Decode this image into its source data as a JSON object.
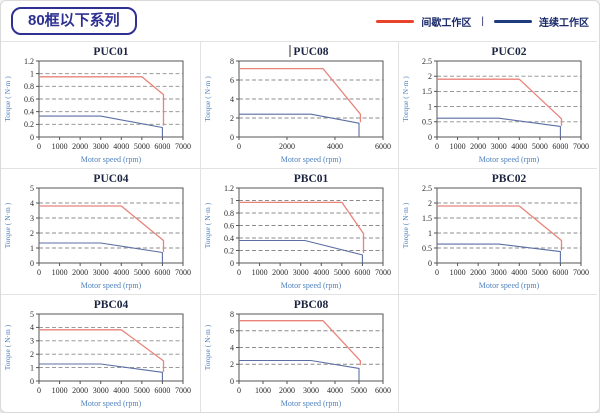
{
  "header": {
    "series_tag": "80框以下系列",
    "legend": [
      {
        "label": "间歇工作区",
        "color": "#e8432c"
      },
      {
        "label": "连续工作区",
        "color": "#1f3a7d"
      }
    ],
    "legend_separator": "|"
  },
  "colors": {
    "intermittent_line": "#e8837a",
    "continuous_line": "#5c6fa3",
    "grid_line": "#8c8c8c",
    "plot_border": "#555555",
    "tick_text": "#2b2b2b",
    "axis_label": "#4f81bd",
    "chart_title": "#1b2440",
    "tag_accent": "#2e3192"
  },
  "chart_data": [
    {
      "type": "line",
      "title": "PUC01",
      "cursor": false,
      "xlabel": "Motor speed (rpm)",
      "ylabel": "Torque ( N·m )",
      "xlim": [
        0,
        7000
      ],
      "ylim": [
        0,
        1.2
      ],
      "xticks": [
        0,
        1000,
        2000,
        3000,
        4000,
        5000,
        6000,
        7000
      ],
      "xtick_labels": [
        "0",
        "1000",
        "2000",
        "3000",
        "4000",
        "5000",
        "6000",
        "7000"
      ],
      "yticks": [
        0,
        0.2,
        0.4,
        0.6,
        0.8,
        1,
        1.2
      ],
      "ytick_labels": [
        "0",
        "0.2",
        "0.4",
        "0.6",
        "0.8",
        "1",
        "1.2"
      ],
      "grid": "dashed-horizontal",
      "legend_position": "none",
      "series": [
        {
          "name": "间歇工作区",
          "role": "intermittent",
          "points": [
            [
              0,
              0.95
            ],
            [
              5000,
              0.95
            ],
            [
              6050,
              0.67
            ],
            [
              6050,
              0.18
            ]
          ]
        },
        {
          "name": "连续工作区",
          "role": "continuous",
          "points": [
            [
              0,
              0.33
            ],
            [
              3000,
              0.33
            ],
            [
              6000,
              0.15
            ],
            [
              6000,
              0
            ]
          ]
        }
      ]
    },
    {
      "type": "line",
      "title": "PUC08",
      "cursor": true,
      "xlabel": "Motor speed (rpm)",
      "ylabel": "Torque ( N·m )",
      "xlim": [
        0,
        6000
      ],
      "ylim": [
        0,
        8
      ],
      "xticks": [
        0,
        2000,
        4000,
        6000
      ],
      "xtick_labels": [
        "0",
        "2000",
        "4000",
        "6000"
      ],
      "yticks": [
        0,
        2,
        4,
        6,
        8
      ],
      "ytick_labels": [
        "0",
        "2",
        "4",
        "6",
        "8"
      ],
      "grid": "dashed-horizontal",
      "legend_position": "none",
      "series": [
        {
          "name": "间歇工作区",
          "role": "intermittent",
          "points": [
            [
              0,
              7.2
            ],
            [
              3500,
              7.2
            ],
            [
              5060,
              2.4
            ],
            [
              5060,
              1.55
            ]
          ]
        },
        {
          "name": "连续工作区",
          "role": "continuous",
          "points": [
            [
              0,
              2.4
            ],
            [
              3000,
              2.4
            ],
            [
              5000,
              1.45
            ],
            [
              5000,
              0
            ]
          ]
        }
      ]
    },
    {
      "type": "line",
      "title": "PUC02",
      "cursor": false,
      "xlabel": "Motor speed (rpm)",
      "ylabel": "Torque ( N·m )",
      "xlim": [
        0,
        7000
      ],
      "ylim": [
        0,
        2.5
      ],
      "xticks": [
        0,
        1000,
        2000,
        3000,
        4000,
        5000,
        6000,
        7000
      ],
      "xtick_labels": [
        "0",
        "1000",
        "2000",
        "3000",
        "4000",
        "5000",
        "6000",
        "7000"
      ],
      "yticks": [
        0,
        0.5,
        1,
        1.5,
        2,
        2.5
      ],
      "ytick_labels": [
        "0",
        "0.5",
        "1",
        "1.5",
        "2",
        "2.5"
      ],
      "grid": "dashed-horizontal",
      "legend_position": "none",
      "series": [
        {
          "name": "间歇工作区",
          "role": "intermittent",
          "points": [
            [
              0,
              1.9
            ],
            [
              4000,
              1.9
            ],
            [
              6050,
              0.6
            ],
            [
              6050,
              0.37
            ]
          ]
        },
        {
          "name": "连续工作区",
          "role": "continuous",
          "points": [
            [
              0,
              0.62
            ],
            [
              3000,
              0.62
            ],
            [
              6000,
              0.35
            ],
            [
              6000,
              0
            ]
          ]
        }
      ]
    },
    {
      "type": "line",
      "title": "PUC04",
      "cursor": false,
      "xlabel": "Motor speed (rpm)",
      "ylabel": "Torque ( N·m )",
      "xlim": [
        0,
        7000
      ],
      "ylim": [
        0,
        5
      ],
      "xticks": [
        0,
        1000,
        2000,
        3000,
        4000,
        5000,
        6000,
        7000
      ],
      "xtick_labels": [
        "0",
        "1000",
        "2000",
        "3000",
        "4000",
        "5000",
        "6000",
        "7000"
      ],
      "yticks": [
        0,
        1,
        2,
        3,
        4,
        5
      ],
      "ytick_labels": [
        "0",
        "1",
        "2",
        "3",
        "4",
        "5"
      ],
      "grid": "dashed-horizontal",
      "legend_position": "none",
      "series": [
        {
          "name": "间歇工作区",
          "role": "intermittent",
          "points": [
            [
              0,
              3.8
            ],
            [
              4000,
              3.8
            ],
            [
              6050,
              1.5
            ],
            [
              6050,
              0.75
            ]
          ]
        },
        {
          "name": "连续工作区",
          "role": "continuous",
          "points": [
            [
              0,
              1.33
            ],
            [
              3000,
              1.33
            ],
            [
              6000,
              0.7
            ],
            [
              6000,
              0
            ]
          ]
        }
      ]
    },
    {
      "type": "line",
      "title": "PBC01",
      "cursor": false,
      "xlabel": "Motor speed (rpm)",
      "ylabel": "Torque ( N·m )",
      "xlim": [
        0,
        7000
      ],
      "ylim": [
        0,
        1.2
      ],
      "xticks": [
        0,
        1000,
        2000,
        3000,
        4000,
        5000,
        6000,
        7000
      ],
      "xtick_labels": [
        "0",
        "1000",
        "2000",
        "3000",
        "4000",
        "5000",
        "6000",
        "7000"
      ],
      "yticks": [
        0,
        0.2,
        0.4,
        0.6,
        0.8,
        1,
        1.2
      ],
      "ytick_labels": [
        "0",
        "0.2",
        "0.4",
        "0.6",
        "0.8",
        "1",
        "1.2"
      ],
      "grid": "dashed-horizontal",
      "legend_position": "none",
      "series": [
        {
          "name": "间歇工作区",
          "role": "intermittent",
          "points": [
            [
              0,
              0.97
            ],
            [
              5000,
              0.97
            ],
            [
              6050,
              0.47
            ],
            [
              6050,
              0.16
            ]
          ]
        },
        {
          "name": "连续工作区",
          "role": "continuous",
          "points": [
            [
              0,
              0.36
            ],
            [
              3200,
              0.36
            ],
            [
              6000,
              0.13
            ],
            [
              6000,
              0
            ]
          ]
        }
      ]
    },
    {
      "type": "line",
      "title": "PBC02",
      "cursor": false,
      "xlabel": "Motor speed (rpm)",
      "ylabel": "Torque ( N·m )",
      "xlim": [
        0,
        7000
      ],
      "ylim": [
        0,
        2.5
      ],
      "xticks": [
        0,
        1000,
        2000,
        3000,
        4000,
        5000,
        6000,
        7000
      ],
      "xtick_labels": [
        "0",
        "1000",
        "2000",
        "3000",
        "4000",
        "5000",
        "6000",
        "7000"
      ],
      "yticks": [
        0,
        0.5,
        1,
        1.5,
        2,
        2.5
      ],
      "ytick_labels": [
        "0",
        "0.5",
        "1",
        "1.5",
        "2",
        "2.5"
      ],
      "grid": "dashed-horizontal",
      "legend_position": "none",
      "series": [
        {
          "name": "间歇工作区",
          "role": "intermittent",
          "points": [
            [
              0,
              1.9
            ],
            [
              4000,
              1.9
            ],
            [
              6050,
              0.75
            ],
            [
              6050,
              0.42
            ]
          ]
        },
        {
          "name": "连续工作区",
          "role": "continuous",
          "points": [
            [
              0,
              0.63
            ],
            [
              3000,
              0.63
            ],
            [
              6000,
              0.38
            ],
            [
              6000,
              0
            ]
          ]
        }
      ]
    },
    {
      "type": "line",
      "title": "PBC04",
      "cursor": false,
      "xlabel": "Motor speed (rpm)",
      "ylabel": "Torque ( N·m )",
      "xlim": [
        0,
        7000
      ],
      "ylim": [
        0,
        5
      ],
      "xticks": [
        0,
        1000,
        2000,
        3000,
        4000,
        5000,
        6000,
        7000
      ],
      "xtick_labels": [
        "0",
        "1000",
        "2000",
        "3000",
        "4000",
        "5000",
        "6000",
        "7000"
      ],
      "yticks": [
        0,
        1,
        2,
        3,
        4,
        5
      ],
      "ytick_labels": [
        "0",
        "1",
        "2",
        "3",
        "4",
        "5"
      ],
      "grid": "dashed-horizontal",
      "legend_position": "none",
      "series": [
        {
          "name": "间歇工作区",
          "role": "intermittent",
          "points": [
            [
              0,
              3.82
            ],
            [
              4000,
              3.82
            ],
            [
              6050,
              1.5
            ],
            [
              6050,
              0.68
            ]
          ]
        },
        {
          "name": "连续工作区",
          "role": "continuous",
          "points": [
            [
              0,
              1.27
            ],
            [
              3000,
              1.27
            ],
            [
              6000,
              0.65
            ],
            [
              6000,
              0
            ]
          ]
        }
      ]
    },
    {
      "type": "line",
      "title": "PBC08",
      "cursor": false,
      "xlabel": "Motor speed (rpm)",
      "ylabel": "Torque ( N·m )",
      "xlim": [
        0,
        6000
      ],
      "ylim": [
        0,
        8
      ],
      "xticks": [
        0,
        1000,
        2000,
        3000,
        4000,
        5000,
        6000
      ],
      "xtick_labels": [
        "0",
        "1000",
        "2000",
        "3000",
        "4000",
        "5000",
        "6000"
      ],
      "yticks": [
        0,
        2,
        4,
        6,
        8
      ],
      "ytick_labels": [
        "0",
        "2",
        "4",
        "6",
        "8"
      ],
      "grid": "dashed-horizontal",
      "legend_position": "none",
      "series": [
        {
          "name": "间歇工作区",
          "role": "intermittent",
          "points": [
            [
              0,
              7.2
            ],
            [
              3500,
              7.2
            ],
            [
              5060,
              2.4
            ],
            [
              5060,
              1.9
            ]
          ]
        },
        {
          "name": "连续工作区",
          "role": "continuous",
          "points": [
            [
              0,
              2.45
            ],
            [
              3000,
              2.45
            ],
            [
              5000,
              1.5
            ],
            [
              5000,
              0
            ]
          ]
        }
      ]
    }
  ]
}
